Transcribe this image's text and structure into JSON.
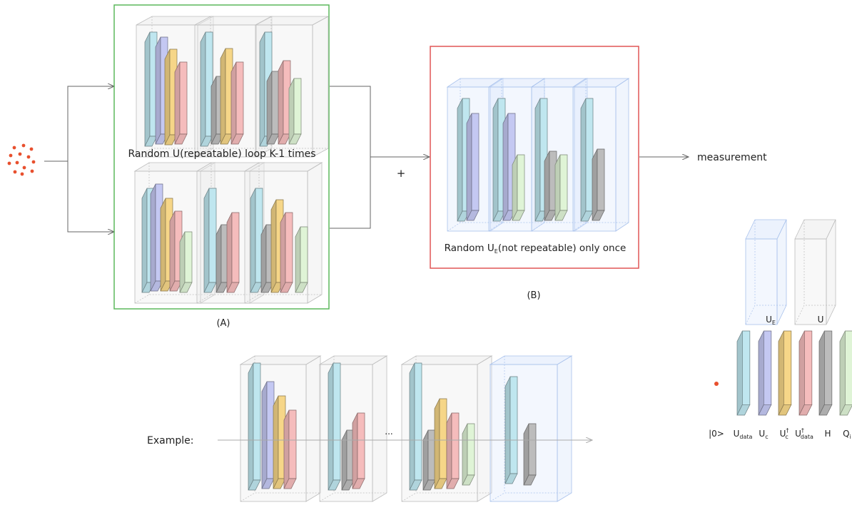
{
  "panel_a": {
    "caption_top": "Random U(repeatable) loop K-1 times",
    "label": "(A)"
  },
  "panel_b": {
    "caption": "Random U",
    "caption_sub": "E",
    "caption_rest": "(not repeatable) only once",
    "label": "(B)"
  },
  "plus_sign": "+",
  "output_label": "measurement",
  "example_label": "Example:",
  "ellipsis": "...",
  "legend": {
    "box_labels": [
      {
        "main": "U",
        "sub": "E",
        "sup": ""
      },
      {
        "main": "U",
        "sub": "",
        "sup": ""
      }
    ],
    "gate_labels": [
      {
        "main": "|0>",
        "sub": "",
        "sup": ""
      },
      {
        "main": "U",
        "sub": "data",
        "sup": ""
      },
      {
        "main": "U",
        "sub": "c",
        "sup": ""
      },
      {
        "main": "U",
        "sub": "c",
        "sup": "†"
      },
      {
        "main": "U",
        "sub": "data",
        "sup": "†"
      },
      {
        "main": "H",
        "sub": "",
        "sup": ""
      },
      {
        "main": "Q",
        "sub": "i",
        "sup": ""
      }
    ]
  },
  "colors": {
    "cyan": "#bfe6ef",
    "purple": "#c4c8f2",
    "yellow": "#f6d688",
    "pink": "#f5bcbc",
    "gray": "#bcbcbc",
    "green": "#dff4d6",
    "dot": "#e8502e",
    "frame_a": "#5cb85c",
    "frame_b": "#e05555"
  }
}
